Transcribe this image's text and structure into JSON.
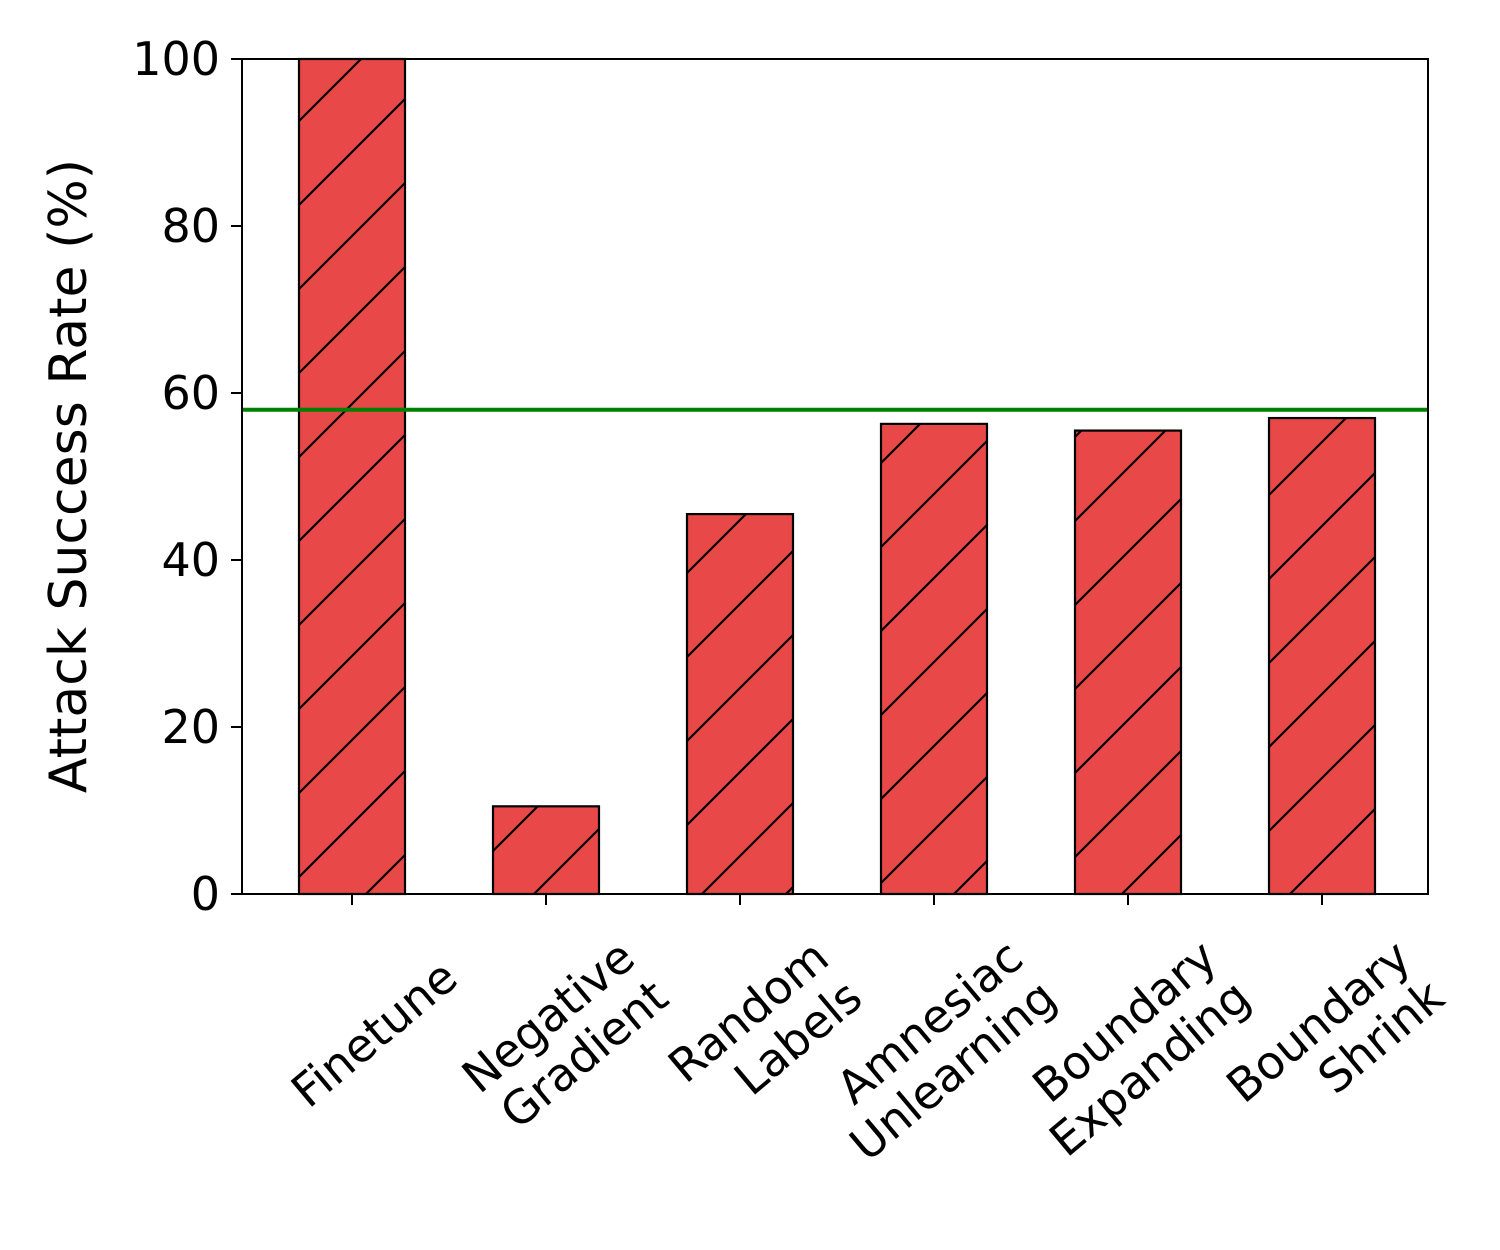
{
  "chart_data": {
    "type": "bar",
    "title": "",
    "xlabel": "",
    "ylabel": "Attack Success Rate (%)",
    "ylim": [
      0,
      100
    ],
    "yticks": [
      0,
      20,
      40,
      60,
      80,
      100
    ],
    "categories": [
      [
        "Finetune"
      ],
      [
        "Negative",
        "Gradient"
      ],
      [
        "Random",
        "Labels"
      ],
      [
        "Amnesiac",
        "Unlearning"
      ],
      [
        "Boundary",
        "Expanding"
      ],
      [
        "Boundary",
        "Shrink"
      ]
    ],
    "values": [
      100,
      10.5,
      45.5,
      56.3,
      55.5,
      57.0
    ],
    "reference_line": {
      "value": 58,
      "color": "#008000"
    },
    "bar_color": "#e84848",
    "bar_edge_color": "#000000",
    "hatch": "diagonal",
    "grid": false,
    "legend": "none"
  }
}
